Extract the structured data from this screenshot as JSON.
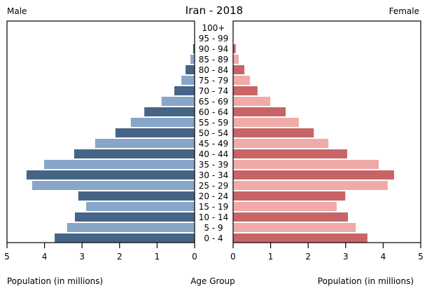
{
  "chart_data": {
    "type": "bar",
    "subtype": "population-pyramid",
    "title": "Iran - 2018",
    "left_label": "Male",
    "right_label": "Female",
    "xlabel_left": "Population (in millions)",
    "xlabel_center": "Age Group",
    "xlabel_right": "Population (in millions)",
    "xlim": [
      0,
      5
    ],
    "xticks": [
      "0",
      "1",
      "2",
      "3",
      "4",
      "5"
    ],
    "grid": false,
    "categories": [
      "100+",
      "95 - 99",
      "90 - 94",
      "85 - 89",
      "80 - 84",
      "75 - 79",
      "70 - 74",
      "65 - 69",
      "60 - 64",
      "55 - 59",
      "50 - 54",
      "45 - 49",
      "40 - 44",
      "35 - 39",
      "30 - 34",
      "25 - 29",
      "20 - 24",
      "15 - 19",
      "10 - 14",
      "5 - 9",
      "0 - 4"
    ],
    "series": [
      {
        "name": "Male",
        "side": "left",
        "colors": [
          "#466485",
          "#87A6C9"
        ],
        "values": [
          0.005,
          0.01,
          0.04,
          0.11,
          0.24,
          0.35,
          0.54,
          0.88,
          1.34,
          1.7,
          2.11,
          2.65,
          3.21,
          4.01,
          4.48,
          4.33,
          3.1,
          2.89,
          3.19,
          3.4,
          3.73
        ]
      },
      {
        "name": "Female",
        "side": "right",
        "colors": [
          "#C86466",
          "#EFAAA9"
        ],
        "values": [
          0.005,
          0.01,
          0.07,
          0.15,
          0.3,
          0.45,
          0.65,
          0.99,
          1.4,
          1.75,
          2.15,
          2.54,
          3.04,
          3.88,
          4.29,
          4.12,
          2.99,
          2.76,
          3.06,
          3.27,
          3.58
        ]
      }
    ]
  }
}
